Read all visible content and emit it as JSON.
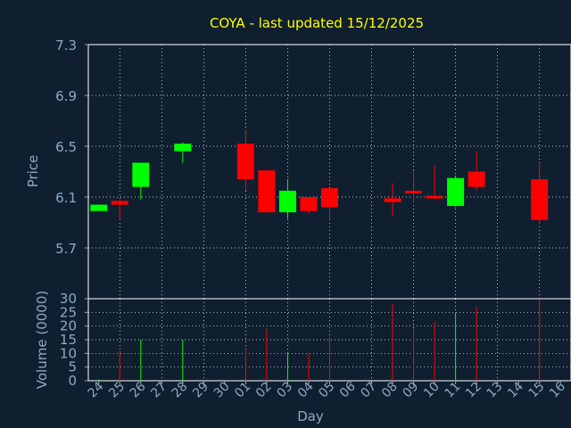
{
  "title": "COYA - last updated 15/12/2025",
  "colors": {
    "background": "#0f1f30",
    "up": "#00ff00",
    "down": "#ff0000",
    "text": "#8fa9c4",
    "title": "#ffff00",
    "grid": "#ffffff"
  },
  "chart_data": [
    {
      "type": "candlestick",
      "ylabel": "Price",
      "ylim": [
        5.3,
        7.3
      ],
      "yticks": [
        "7.3",
        "6.9",
        "6.5",
        "6.1",
        "5.7"
      ],
      "grid": true,
      "x": [
        "24",
        "25",
        "26",
        "27",
        "28",
        "29",
        "30",
        "01",
        "02",
        "03",
        "04",
        "05",
        "06",
        "07",
        "08",
        "09",
        "10",
        "11",
        "12",
        "13",
        "14",
        "15",
        "16"
      ],
      "candles": [
        {
          "x": "24",
          "open": 5.99,
          "high": 6.04,
          "low": 5.99,
          "close": 6.04
        },
        {
          "x": "25",
          "open": 6.07,
          "high": 6.08,
          "low": 5.92,
          "close": 6.04
        },
        {
          "x": "26",
          "open": 6.18,
          "high": 6.37,
          "low": 6.08,
          "close": 6.37
        },
        {
          "x": "28",
          "open": 6.46,
          "high": 6.53,
          "low": 6.37,
          "close": 6.52
        },
        {
          "x": "01",
          "open": 6.52,
          "high": 6.63,
          "low": 6.15,
          "close": 6.24
        },
        {
          "x": "02",
          "open": 6.31,
          "high": 6.31,
          "low": 5.98,
          "close": 5.98
        },
        {
          "x": "03",
          "open": 5.98,
          "high": 6.24,
          "low": 5.93,
          "close": 6.15
        },
        {
          "x": "04",
          "open": 6.1,
          "high": 6.1,
          "low": 5.97,
          "close": 5.99
        },
        {
          "x": "05",
          "open": 6.17,
          "high": 6.17,
          "low": 5.92,
          "close": 6.02
        },
        {
          "x": "08",
          "open": 6.09,
          "high": 6.21,
          "low": 5.95,
          "close": 6.06
        },
        {
          "x": "09",
          "open": 6.15,
          "high": 6.31,
          "low": 6.06,
          "close": 6.13
        },
        {
          "x": "10",
          "open": 6.11,
          "high": 6.35,
          "low": 6.08,
          "close": 6.09
        },
        {
          "x": "11",
          "open": 6.03,
          "high": 6.27,
          "low": 6.02,
          "close": 6.25
        },
        {
          "x": "12",
          "open": 6.3,
          "high": 6.46,
          "low": 6.15,
          "close": 6.18
        },
        {
          "x": "15",
          "open": 6.24,
          "high": 6.36,
          "low": 5.89,
          "close": 5.92
        }
      ]
    },
    {
      "type": "bar",
      "ylabel": "Volume (0000)",
      "xlabel": "Day",
      "ylim": [
        0,
        30
      ],
      "yticks": [
        "30",
        "25",
        "20",
        "15",
        "10",
        "5",
        "0"
      ],
      "grid": true,
      "x": [
        "24",
        "25",
        "26",
        "27",
        "28",
        "29",
        "30",
        "01",
        "02",
        "03",
        "04",
        "05",
        "06",
        "07",
        "08",
        "09",
        "10",
        "11",
        "12",
        "13",
        "14",
        "15",
        "16"
      ],
      "bars": [
        {
          "x": "24",
          "value": 0.5,
          "color": "up"
        },
        {
          "x": "25",
          "value": 11,
          "color": "down"
        },
        {
          "x": "26",
          "value": 15,
          "color": "up"
        },
        {
          "x": "28",
          "value": 15,
          "color": "up"
        },
        {
          "x": "01",
          "value": 12,
          "color": "down"
        },
        {
          "x": "02",
          "value": 19,
          "color": "down"
        },
        {
          "x": "03",
          "value": 10.5,
          "color": "up"
        },
        {
          "x": "04",
          "value": 10,
          "color": "down"
        },
        {
          "x": "05",
          "value": 16,
          "color": "down"
        },
        {
          "x": "08",
          "value": 28,
          "color": "down"
        },
        {
          "x": "09",
          "value": 19,
          "color": "down"
        },
        {
          "x": "10",
          "value": 21.5,
          "color": "down"
        },
        {
          "x": "11",
          "value": 25,
          "color": "up"
        },
        {
          "x": "12",
          "value": 27,
          "color": "down"
        },
        {
          "x": "15",
          "value": 30,
          "color": "down"
        }
      ]
    }
  ]
}
